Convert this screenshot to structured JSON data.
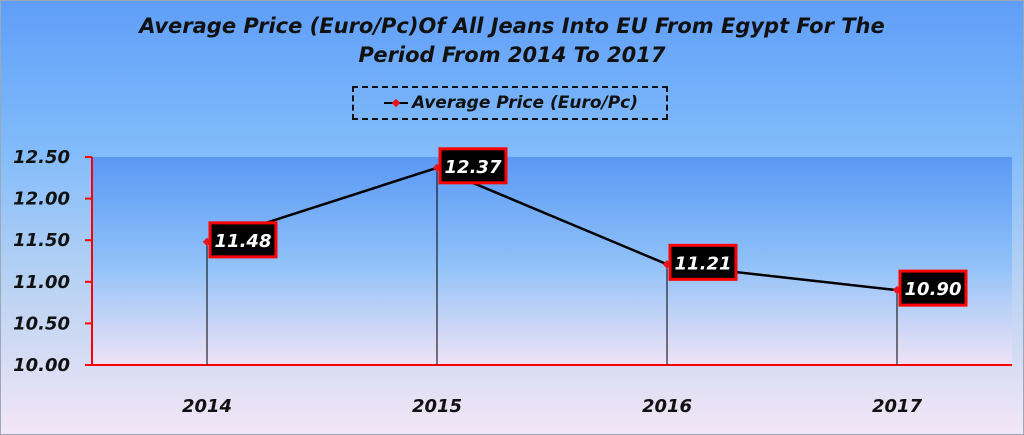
{
  "chart_data": {
    "type": "line",
    "title": "Average Price (Euro/Pc)Of All Jeans Into EU From Egypt For The Period From 2014 To 2017",
    "title_lines": [
      "Average Price (Euro/Pc)Of All Jeans Into EU From Egypt For The",
      "Period From 2014 To 2017"
    ],
    "categories": [
      "2014",
      "2015",
      "2016",
      "2017"
    ],
    "series": [
      {
        "name": "Average Price (Euro/Pc)",
        "values": [
          11.48,
          12.37,
          11.21,
          10.9
        ],
        "color": "#000000",
        "marker_color": "#e8141e"
      }
    ],
    "data_labels": [
      "11.48",
      "12.37",
      "11.21",
      "10.90"
    ],
    "ylim": [
      10.0,
      12.5
    ],
    "yticks": [
      "10.00",
      "10.50",
      "11.00",
      "11.50",
      "12.00",
      "12.50"
    ],
    "xlabel": "",
    "ylabel": "",
    "grid": false,
    "drop_lines": true,
    "legend_position": "top",
    "axis_color": "#ff0000",
    "label_box_fill": "#000000",
    "label_box_border": "#ff0000"
  }
}
